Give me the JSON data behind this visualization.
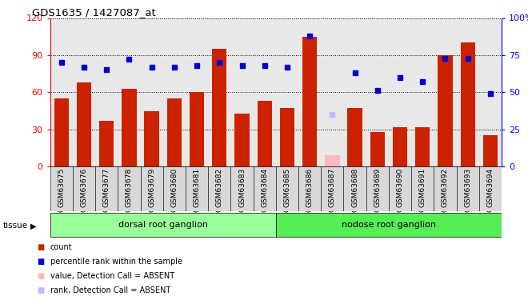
{
  "title": "GDS1635 / 1427087_at",
  "categories": [
    "GSM63675",
    "GSM63676",
    "GSM63677",
    "GSM63678",
    "GSM63679",
    "GSM63680",
    "GSM63681",
    "GSM63682",
    "GSM63683",
    "GSM63684",
    "GSM63685",
    "GSM63686",
    "GSM63687",
    "GSM63688",
    "GSM63689",
    "GSM63690",
    "GSM63691",
    "GSM63692",
    "GSM63693",
    "GSM63694"
  ],
  "bar_values": [
    55,
    68,
    37,
    63,
    45,
    55,
    60,
    95,
    43,
    53,
    47,
    105,
    9,
    47,
    28,
    32,
    32,
    90,
    100,
    25
  ],
  "bar_absent": [
    false,
    false,
    false,
    false,
    false,
    false,
    false,
    false,
    false,
    false,
    false,
    false,
    true,
    false,
    false,
    false,
    false,
    false,
    false,
    false
  ],
  "blue_values": [
    70,
    67,
    65,
    72,
    67,
    67,
    68,
    70,
    68,
    68,
    67,
    88,
    35,
    63,
    51,
    60,
    57,
    73,
    73,
    49
  ],
  "blue_absent": [
    false,
    false,
    false,
    false,
    false,
    false,
    false,
    false,
    false,
    false,
    false,
    false,
    true,
    false,
    false,
    false,
    false,
    false,
    false,
    false
  ],
  "tissue_groups": [
    {
      "label": "dorsal root ganglion",
      "start": 0,
      "end": 10,
      "color": "#99ff99"
    },
    {
      "label": "nodose root ganglion",
      "start": 10,
      "end": 20,
      "color": "#55ee55"
    }
  ],
  "ylim_left": [
    0,
    120
  ],
  "ylim_right": [
    0,
    100
  ],
  "yticks_left": [
    0,
    30,
    60,
    90,
    120
  ],
  "ytick_labels_left": [
    "0",
    "30",
    "60",
    "90",
    "120"
  ],
  "yticks_right": [
    0,
    25,
    50,
    75,
    100
  ],
  "ytick_labels_right": [
    "0",
    "25",
    "50",
    "75",
    "100%"
  ],
  "bar_color": "#cc2200",
  "bar_absent_color": "#ffbbbb",
  "blue_color": "#0000cc",
  "blue_absent_color": "#bbbbff",
  "plot_bg_color": "#e8e8e8",
  "fig_bg_color": "#ffffff",
  "legend_items": [
    {
      "label": "count",
      "color": "#cc2200"
    },
    {
      "label": "percentile rank within the sample",
      "color": "#0000cc"
    },
    {
      "label": "value, Detection Call = ABSENT",
      "color": "#ffbbbb"
    },
    {
      "label": "rank, Detection Call = ABSENT",
      "color": "#bbbbff"
    }
  ]
}
